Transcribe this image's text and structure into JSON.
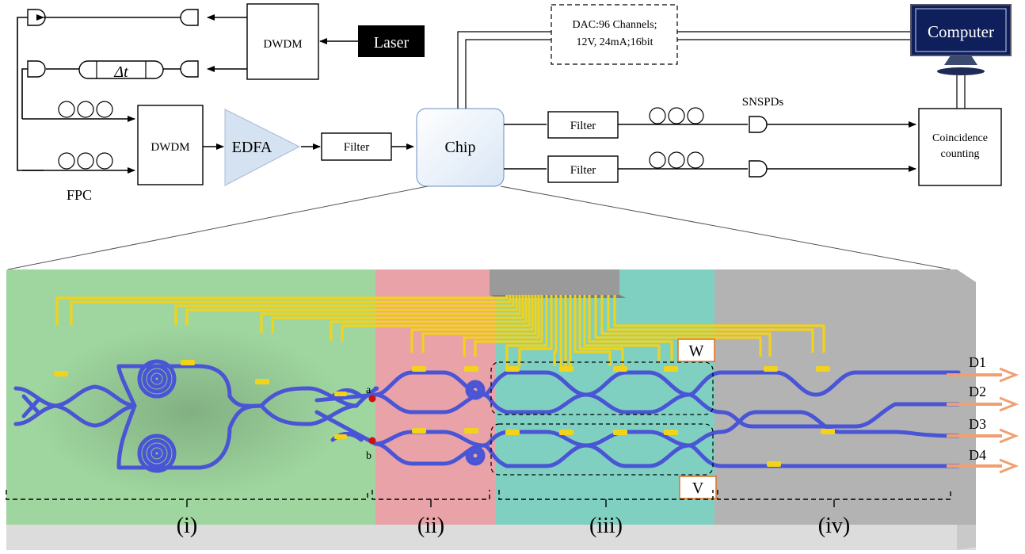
{
  "figure": {
    "blocks": {
      "dwdm_top": "DWDM",
      "laser": "Laser",
      "delay": "Δt",
      "dwdm_bottom": "DWDM",
      "edfa": "EDFA",
      "filter_in": "Filter",
      "chip": "Chip",
      "dac_line1": "DAC:96 Channels;",
      "dac_line2": "12V, 24mA;16bit",
      "computer": "Computer",
      "filter_out_1": "Filter",
      "filter_out_2": "Filter",
      "snspd_label": "SNSPDs",
      "coincidence_line1": "Coincidence",
      "coincidence_line2": "counting",
      "fpc_label": "FPC"
    },
    "chip_view": {
      "region_labels": [
        "(i)",
        "(ii)",
        "(iii)",
        "(iv)"
      ],
      "region_colors": [
        "#9fd69f",
        "#e8a2a8",
        "#7fd0c0",
        "#b3b3b3"
      ],
      "box_labels": {
        "w": "W",
        "v": "V"
      },
      "point_labels": {
        "a": "a",
        "b": "b"
      },
      "outputs": [
        "D1",
        "D2",
        "D3",
        "D4"
      ],
      "colors": {
        "waveguide": "#4a55d6",
        "heater": "#f3d21a",
        "output_arrow": "#f0a070",
        "pad": "#9a9a9a",
        "box_outline": "#e07020"
      }
    }
  }
}
